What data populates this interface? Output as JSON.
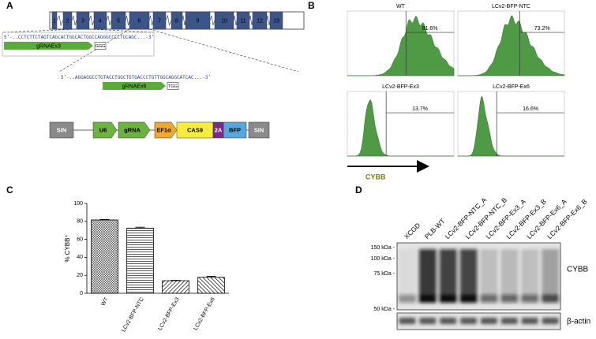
{
  "panel_labels": [
    "A",
    "B",
    "C",
    "D"
  ],
  "panel_a": {
    "exons": [
      "1",
      "2",
      "3",
      "4",
      "5",
      "6",
      "7",
      "8",
      "9",
      "10",
      "11",
      "12",
      "13"
    ],
    "sequences": [
      {
        "text": "5’-..CCTCTTCTAGTCAGCACTGGCACTGGCCAGGGCCCCTGCAGC...-3’",
        "guide": "gRNAEx3",
        "pam": "GGG"
      },
      {
        "text": "5’-..AGGAGGCCTGTACCTGGCTGTGACCCTGTTGGCAGGCATCAC...-3’",
        "guide": "gRNAEx6",
        "pam": "TGG"
      }
    ],
    "construct": [
      "SIN",
      "U6",
      "gRNA",
      "EF1α",
      "CAS9",
      "2A",
      "BFP",
      "SIN"
    ]
  },
  "panel_b": {
    "histograms": [
      {
        "title": "WT",
        "gate": "81.6%"
      },
      {
        "title": "LCv2-BFP-NTC",
        "gate": "73.2%"
      },
      {
        "title": "LCv2-BFP-Ex3",
        "gate": "13.7%"
      },
      {
        "title": "LCv2-BFP-Ex6",
        "gate": "16.6%"
      }
    ],
    "axis_label": "CYBB"
  },
  "chart_data": {
    "type": "bar",
    "y_label": "% CYBB⁺",
    "categories": [
      "WT",
      "LCv2-BFP-NTC",
      "LCv2-BFP-Ex3",
      "LCv2-BFP-Ex6"
    ],
    "values": [
      81.6,
      72.5,
      14,
      17.8
    ],
    "errors": [
      0.5,
      1,
      0.5,
      1
    ],
    "ylim": [
      0,
      100
    ],
    "yticks": [
      0,
      20,
      40,
      60,
      80,
      100
    ]
  },
  "panel_d": {
    "lanes": [
      "XCGD",
      "PLB-WT",
      "LCv2-BFP-NTC_A",
      "LCv2-BFP-NTC_B",
      "LCv2-BFP-Ex3_A",
      "LCv2-BFP-Ex3_B",
      "LCv2-BFP-Ex6_A",
      "LCv2-BFP-Ex6_B"
    ],
    "markers": [
      "150 kDa -",
      "100 kDa -",
      "75 kDa -",
      "50 kDa -"
    ],
    "blots": [
      "CYBB",
      "β-actin"
    ]
  }
}
